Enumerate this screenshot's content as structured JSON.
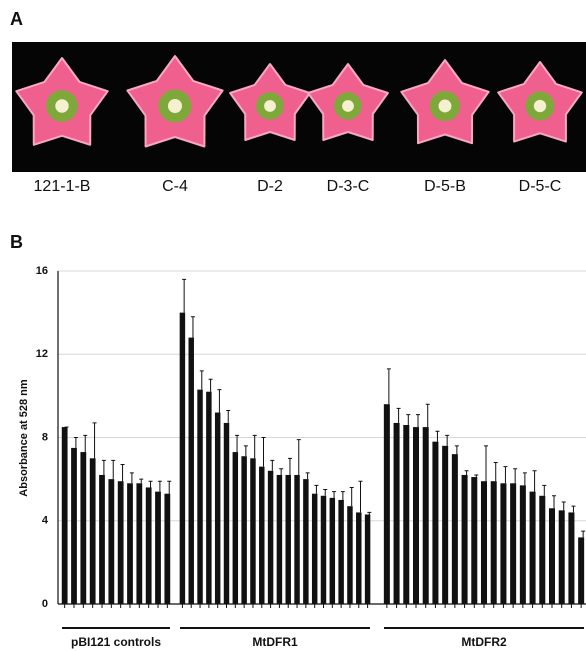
{
  "panel_a": {
    "label": "A",
    "flowers": [
      "121-1-B",
      "C-4",
      "D-2",
      "D-3-C",
      "D-5-B",
      "D-5-C"
    ]
  },
  "chart_data": {
    "type": "bar",
    "panel_label": "B",
    "ylabel": "Absorbance at 528 nm",
    "ylim": [
      0,
      16
    ],
    "yticks": [
      0,
      4,
      8,
      12,
      16
    ],
    "grid": true,
    "series": [
      {
        "name": "pBI121 controls",
        "color": "#111111",
        "values": [
          8.5,
          7.5,
          7.3,
          7.0,
          6.2,
          6.0,
          5.9,
          5.8,
          5.8,
          5.6,
          5.4,
          5.3
        ],
        "errors": [
          0,
          0.5,
          0.8,
          1.7,
          0.7,
          0.9,
          0.8,
          0.5,
          0.2,
          0.3,
          0.5,
          0.6
        ]
      },
      {
        "name": "MtDFR1",
        "color": "#111111",
        "values": [
          14.0,
          12.8,
          10.3,
          10.2,
          9.2,
          8.7,
          7.3,
          7.1,
          7.0,
          6.6,
          6.4,
          6.2,
          6.2,
          6.2,
          6.0,
          5.3,
          5.2,
          5.1,
          5.0,
          4.7,
          4.4,
          4.3
        ],
        "errors": [
          1.6,
          1.0,
          0.9,
          0.6,
          1.1,
          0.6,
          0.8,
          0.5,
          1.1,
          1.4,
          0.5,
          0.3,
          0.8,
          1.7,
          0.3,
          0.4,
          0.3,
          0.3,
          0.4,
          0.9,
          1.5,
          0.1
        ]
      },
      {
        "name": "MtDFR2",
        "color": "#111111",
        "values": [
          9.6,
          8.7,
          8.6,
          8.5,
          8.5,
          7.8,
          7.6,
          7.2,
          6.2,
          6.1,
          5.9,
          5.9,
          5.8,
          5.8,
          5.7,
          5.4,
          5.2,
          4.6,
          4.5,
          4.4,
          3.2
        ],
        "errors": [
          1.7,
          0.7,
          0.5,
          0.6,
          1.1,
          0.5,
          0.5,
          0.4,
          0.2,
          0.1,
          1.7,
          0.9,
          0.8,
          0.7,
          0.6,
          1.0,
          0.5,
          0.6,
          0.4,
          0.3,
          0.3
        ]
      }
    ]
  }
}
